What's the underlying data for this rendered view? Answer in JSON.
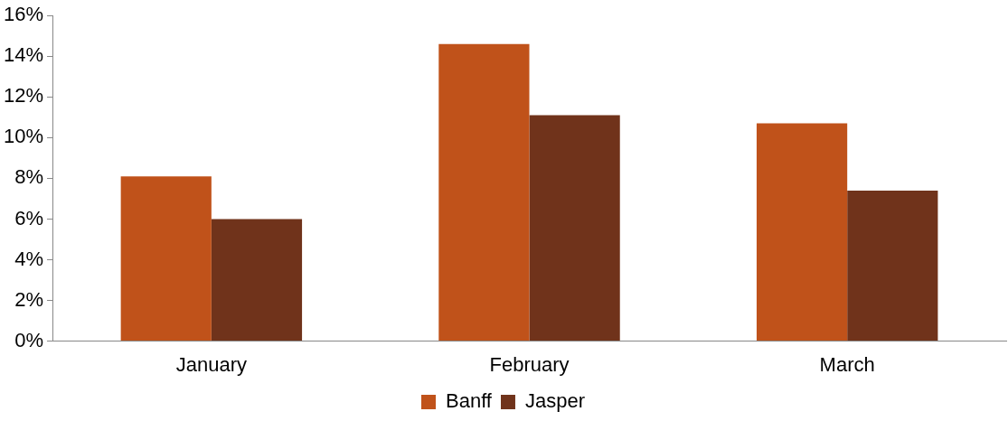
{
  "chart_data": {
    "type": "bar",
    "categories": [
      "January",
      "February",
      "March"
    ],
    "series": [
      {
        "name": "Banff",
        "color": "#c0521a",
        "values": [
          8.1,
          14.6,
          10.7
        ]
      },
      {
        "name": "Jasper",
        "color": "#70331b",
        "values": [
          6.0,
          11.1,
          7.4
        ]
      }
    ],
    "ylim": [
      0,
      16
    ],
    "yticks": [
      {
        "value": 0,
        "label": "0%"
      },
      {
        "value": 2,
        "label": "2%"
      },
      {
        "value": 4,
        "label": "4%"
      },
      {
        "value": 6,
        "label": "6%"
      },
      {
        "value": 8,
        "label": "8%"
      },
      {
        "value": 10,
        "label": "10%"
      },
      {
        "value": 12,
        "label": "12%"
      },
      {
        "value": 14,
        "label": "14%"
      },
      {
        "value": 16,
        "label": "16%"
      }
    ],
    "grid": false,
    "legend": "bottom"
  }
}
